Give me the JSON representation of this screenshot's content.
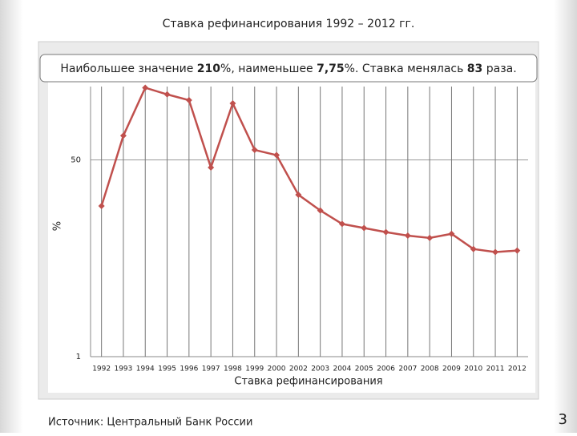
{
  "slide": {
    "source": "Источник: Центральный Банк России",
    "page_number": "3"
  },
  "chart_data": {
    "type": "line",
    "title": "Ставка рефинансирования 1992 – 2012 гг.",
    "subtitle_parts": [
      "Наибольшее значение ",
      "210",
      "%, наименьшее ",
      "7,75",
      "%. Ставка менялась ",
      "83",
      " раза."
    ],
    "x_label": "Ставка рефинансирования",
    "y_label": "%",
    "categories": [
      "1992",
      "1993",
      "1994",
      "1995",
      "1996",
      "1997",
      "1998",
      "1999",
      "2000",
      "2002",
      "2003",
      "2004",
      "2005",
      "2006",
      "2007",
      "2008",
      "2009",
      "2010",
      "2011",
      "2012"
    ],
    "series": [
      {
        "name": "Ставка рефинансирования",
        "color": "#c0504d",
        "values": [
          20,
          81,
          210,
          184,
          164,
          43,
          154,
          61,
          55,
          25,
          18.3,
          14,
          12.9,
          11.9,
          11.1,
          10.6,
          11.5,
          8.5,
          8,
          8.25
        ]
      }
    ],
    "log_scale": true,
    "ylim": [
      1,
      215
    ],
    "yticks": [
      1,
      50
    ],
    "grid": true
  }
}
